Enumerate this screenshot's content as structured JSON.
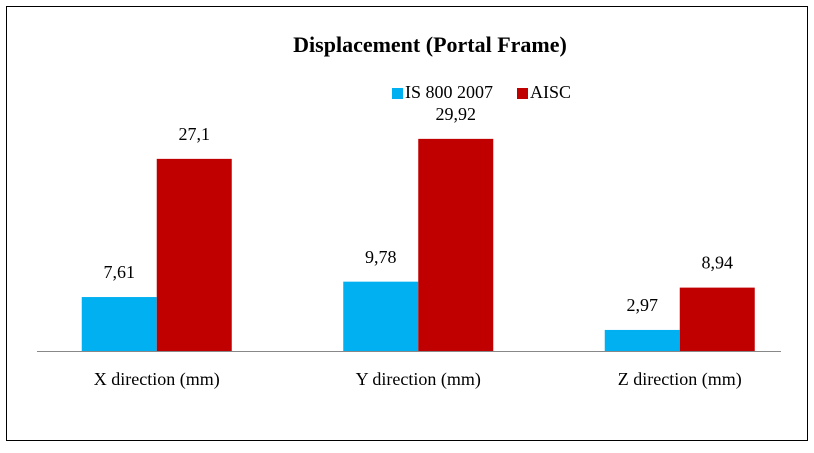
{
  "chart_data": {
    "type": "bar",
    "title": "Displacement  (Portal Frame)",
    "categories": [
      "X direction (mm)",
      "Y direction (mm)",
      "Z direction (mm)"
    ],
    "series": [
      {
        "name": "IS 800 2007",
        "color": "#00b0f0",
        "values": [
          7.61,
          9.78,
          2.97
        ],
        "value_labels": [
          "7,61",
          "9,78",
          "2,97"
        ]
      },
      {
        "name": "AISC",
        "color": "#c00000",
        "values": [
          27.1,
          29.92,
          8.94
        ],
        "value_labels": [
          "27,1",
          "29,92",
          "8,94"
        ]
      }
    ],
    "legend": "top"
  }
}
